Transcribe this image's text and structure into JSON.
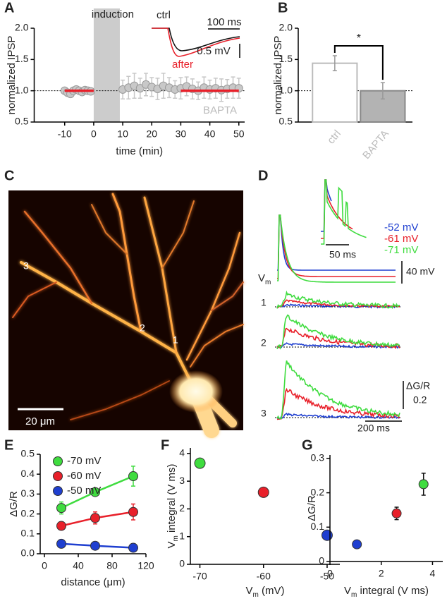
{
  "chart_data": [
    {
      "type": "scatter",
      "label": "A",
      "ylabel": "normalized IPSP",
      "xlabel": "time (min)",
      "xlim": [
        -20.5,
        52
      ],
      "xticks": [
        -10,
        0,
        10,
        20,
        30,
        40,
        50
      ],
      "ylim": [
        0.5,
        2.0
      ],
      "yticks": [
        0.5,
        {
          "value": 1,
          "label": "1.0"
        },
        1.5,
        {
          "value": 2,
          "label": "2.0"
        }
      ],
      "grid": false,
      "shade": [
        0,
        9
      ],
      "shade_label": "induction",
      "reference_line": 1,
      "annotations": [
        "BAPTA",
        "ctrl",
        "after",
        "100 ms",
        "0.5 mV"
      ],
      "series": [
        {
          "color": "#c8c8c8",
          "marker": "circle",
          "x": [
            -10,
            -9,
            -8,
            -7,
            -6,
            -5,
            -4,
            -3,
            -2,
            -1,
            10,
            12,
            14,
            16,
            18,
            20,
            22,
            24,
            26,
            28,
            30,
            32,
            34,
            36,
            38,
            40,
            42,
            44,
            46,
            48,
            50
          ],
          "values": [
            1.0,
            0.97,
            0.95,
            1.0,
            1.02,
            1.0,
            0.98,
            1.01,
            1.0,
            0.99,
            1.02,
            1.05,
            1.08,
            1.04,
            1.1,
            1.06,
            1.03,
            1.08,
            1.05,
            1.02,
            1.04,
            1.07,
            1.03,
            1.0,
            1.05,
            1.02,
            1.04,
            1.01,
            1.03,
            1.05,
            1.04
          ],
          "errors": [
            0.03,
            0.03,
            0.03,
            0.03,
            0.03,
            0.03,
            0.03,
            0.03,
            0.03,
            0.03,
            0.15,
            0.18,
            0.2,
            0.16,
            0.18,
            0.15,
            0.17,
            0.2,
            0.16,
            0.14,
            0.17,
            0.15,
            0.16,
            0.14,
            0.17,
            0.15,
            0.16,
            0.18,
            0.15,
            0.17,
            0.16
          ]
        },
        {
          "color": "#e8202a",
          "marker": "line",
          "x": [
            -10,
            0
          ],
          "values": [
            1,
            1
          ]
        },
        {
          "color": "#e8202a",
          "marker": "line",
          "x": [
            30,
            50
          ],
          "values": [
            1,
            1
          ]
        }
      ]
    },
    {
      "type": "bar",
      "label": "B",
      "ylabel": "normalized IPSP",
      "categories": [
        "ctrl",
        "BAPTA"
      ],
      "values": [
        1.44,
        1.0
      ],
      "errors": [
        0.12,
        0.13
      ],
      "colors": [
        "#ffffff",
        "#b3b3b3"
      ],
      "edge_colors": [
        "#bbbbbb",
        "#888888"
      ],
      "ylim": [
        0.5,
        2.0
      ],
      "yticks": [
        0.5,
        {
          "value": 1,
          "label": "1.0"
        },
        1.5,
        {
          "value": 2,
          "label": "2.0"
        }
      ],
      "grid": false,
      "reference_line": 1,
      "significance": "*"
    },
    {
      "type": "line",
      "label": "E",
      "ylabel": "ΔG/R",
      "xlabel": "distance (μm)",
      "xlim": [
        -5,
        120
      ],
      "xticks": [
        0,
        40,
        80,
        120
      ],
      "ylim": [
        0,
        0.5
      ],
      "yticks": [
        {
          "value": 0,
          "label": "0.0"
        },
        0.1,
        0.2,
        0.3,
        0.4,
        0.5
      ],
      "grid": false,
      "legend": "upper left",
      "series": [
        {
          "name": "-70 mV",
          "color": "#3fdc3f",
          "x": [
            20,
            60,
            105
          ],
          "values": [
            0.23,
            0.31,
            0.39
          ],
          "errors": [
            0.03,
            0.02,
            0.05
          ]
        },
        {
          "name": "-60 mV",
          "color": "#e8202a",
          "x": [
            20,
            60,
            105
          ],
          "values": [
            0.14,
            0.18,
            0.21
          ],
          "errors": [
            0.02,
            0.03,
            0.04
          ]
        },
        {
          "name": "-50 mV",
          "color": "#1f3fd0",
          "x": [
            20,
            60,
            105
          ],
          "values": [
            0.05,
            0.04,
            0.03
          ],
          "errors": [
            0.01,
            0.01,
            0.01
          ]
        }
      ]
    },
    {
      "type": "scatter",
      "label": "F",
      "ylabel": [
        "V",
        "m",
        " integral (V ms)"
      ],
      "xlabel": [
        "V",
        "m",
        " (mV)"
      ],
      "xlim": [
        -71.5,
        -48
      ],
      "xticks": [
        -70,
        -60,
        -50
      ],
      "ylim": [
        0,
        4.2
      ],
      "yticks": [
        0,
        1,
        2,
        3,
        4
      ],
      "grid": false,
      "series": [
        {
          "marker": "circle",
          "x": [
            -70,
            -60,
            -50
          ],
          "values": [
            3.65,
            2.6,
            1.05
          ],
          "colors": [
            "#3fdc3f",
            "#e8202a",
            "#1f3fd0"
          ]
        }
      ]
    },
    {
      "type": "scatter",
      "label": "G",
      "ylabel": "ΔG/R",
      "xlabel": [
        "V",
        "m",
        " integral (V ms)"
      ],
      "xlim": [
        0,
        4.4
      ],
      "xticks": [
        0,
        2,
        4
      ],
      "ylim": [
        0,
        0.31
      ],
      "yticks": [
        0,
        0.1,
        0.2,
        0.3
      ],
      "grid": false,
      "series": [
        {
          "marker": "circle",
          "x": [
            1.05,
            2.6,
            3.65
          ],
          "values": [
            0.05,
            0.14,
            0.225
          ],
          "errors": [
            0.006,
            0.018,
            0.032
          ],
          "colors": [
            "#1f3fd0",
            "#e8202a",
            "#3fdc3f"
          ]
        }
      ]
    }
  ],
  "panel_c": {
    "label": "C",
    "labels": [
      "3",
      "2",
      "1"
    ],
    "scale_bar": "20 μm"
  },
  "panel_d": {
    "label": "D",
    "legend": [
      "-52 mV",
      "-61 mV",
      "-71 mV"
    ],
    "inset_time_bar": "50 ms",
    "vm_label": [
      "V",
      "m"
    ],
    "vm_bar": "40 mV",
    "roi_labels": [
      "1",
      "2",
      "3"
    ],
    "dgr_label": "ΔG/R",
    "dgr_bar": "0.2",
    "time_bar": "200 ms"
  }
}
